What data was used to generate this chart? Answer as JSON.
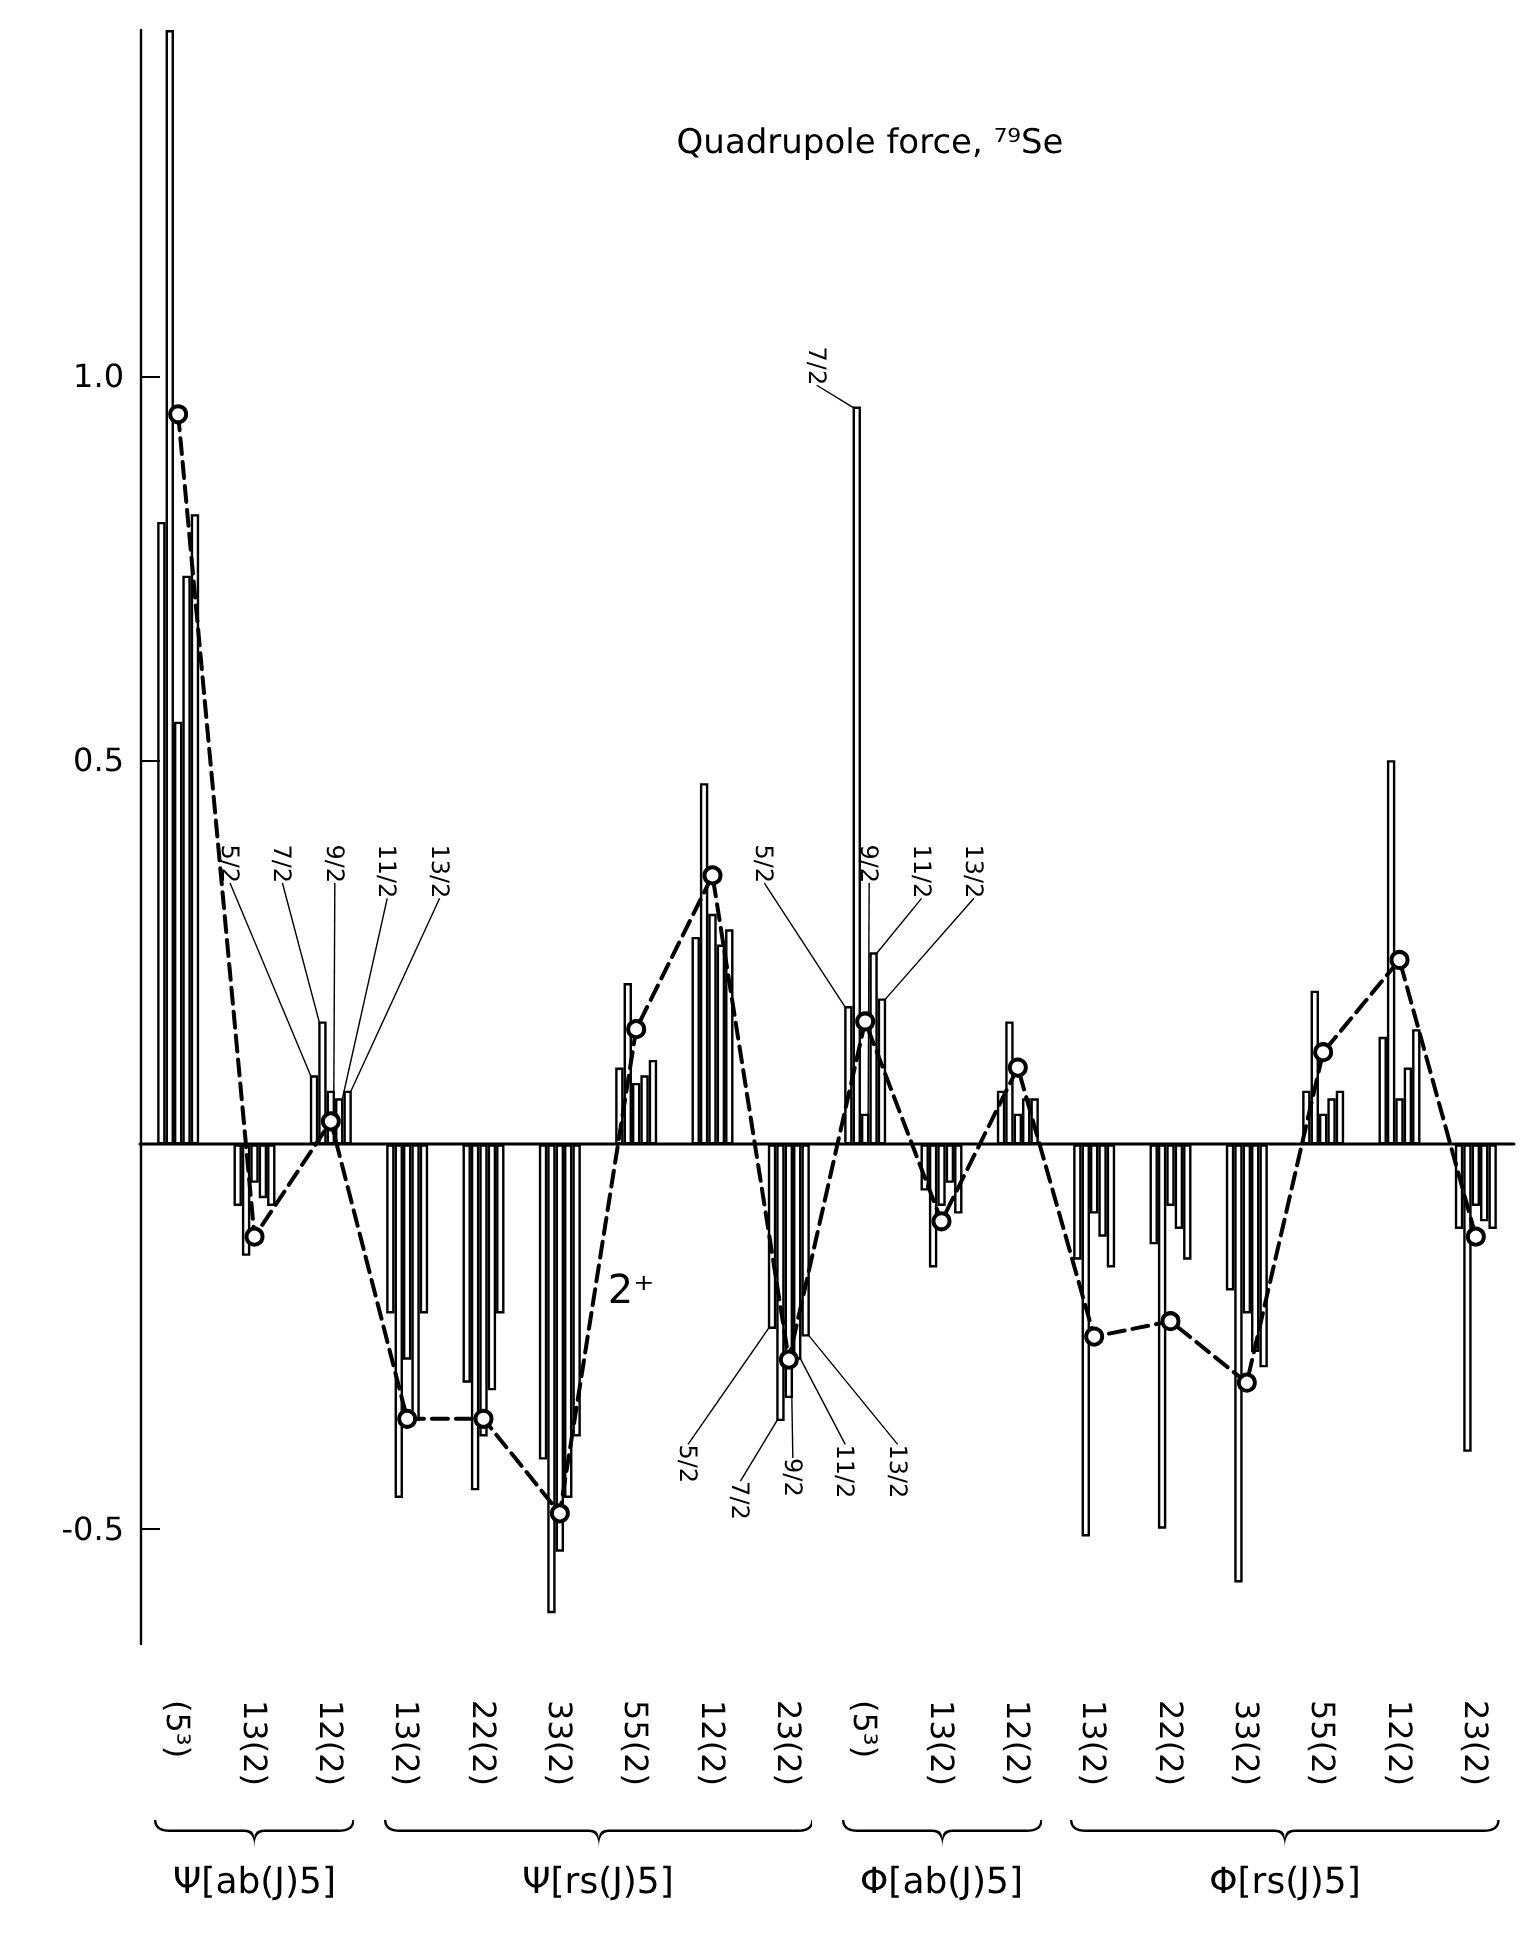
{
  "chart_data": {
    "type": "bar",
    "title": "Quadrupole force, ⁷⁹Se",
    "categories": [
      "(5³)",
      "13(2)",
      "12(2)",
      "13(2)",
      "22(2)",
      "33(2)",
      "55(2)",
      "12(2)",
      "23(2)",
      "(5³)",
      "13(2)",
      "12(2)",
      "13(2)",
      "22(2)",
      "33(2)",
      "55(2)",
      "12(2)",
      "23(2)"
    ],
    "series": [
      {
        "name": "5/2",
        "color": "#000000",
        "values": [
          0.81,
          -0.08,
          0.09,
          -0.22,
          -0.31,
          -0.41,
          0.1,
          0.27,
          -0.24,
          0.18,
          -0.06,
          0.07,
          -0.15,
          -0.13,
          -0.19,
          0.07,
          0.14,
          -0.11
        ]
      },
      {
        "name": "7/2",
        "color": "#000000",
        "values": [
          1.45,
          -0.145,
          0.16,
          -0.46,
          -0.45,
          -0.61,
          0.21,
          0.47,
          -0.36,
          0.96,
          -0.16,
          0.16,
          -0.51,
          -0.5,
          -0.57,
          0.2,
          0.5,
          -0.4
        ]
      },
      {
        "name": "9/2",
        "color": "#000000",
        "values": [
          0.55,
          -0.05,
          0.07,
          -0.28,
          -0.38,
          -0.53,
          0.08,
          0.3,
          -0.33,
          0.04,
          -0.08,
          0.04,
          -0.09,
          -0.08,
          -0.22,
          0.04,
          0.06,
          -0.08
        ]
      },
      {
        "name": "11/2",
        "color": "#000000",
        "values": [
          0.74,
          -0.07,
          0.06,
          -0.36,
          -0.32,
          -0.46,
          0.09,
          0.26,
          -0.28,
          0.25,
          -0.05,
          0.06,
          -0.12,
          -0.11,
          -0.27,
          0.06,
          0.1,
          -0.1
        ]
      },
      {
        "name": "13/2",
        "color": "#000000",
        "values": [
          0.82,
          -0.08,
          0.07,
          -0.22,
          -0.22,
          -0.38,
          0.11,
          0.28,
          -0.25,
          0.19,
          -0.09,
          0.06,
          -0.16,
          -0.15,
          -0.29,
          0.07,
          0.15,
          -0.11
        ]
      },
      {
        "name": "2⁺",
        "type": "line",
        "color": "#000000",
        "values": [
          0.95,
          -0.12,
          0.03,
          -0.357,
          -0.357,
          -0.48,
          0.15,
          0.35,
          -0.28,
          0.16,
          -0.1,
          0.1,
          -0.25,
          -0.23,
          -0.31,
          0.12,
          0.24,
          -0.12
        ]
      }
    ],
    "ylim": [
      -0.65,
      1.45
    ],
    "yticks": [
      {
        "value": -0.5,
        "label": "-0.5"
      },
      {
        "value": 0.5,
        "label": "0.5"
      },
      {
        "value": 1,
        "label": "1.0"
      }
    ],
    "grid": false,
    "legend": false,
    "marker": "circle",
    "line_style": "dashed",
    "annotations": [
      "Ψ[ab(J)5]",
      "Ψ[rs(J)5]",
      "Φ[ab(J)5]",
      "Φ[rs(J)5]"
    ]
  }
}
